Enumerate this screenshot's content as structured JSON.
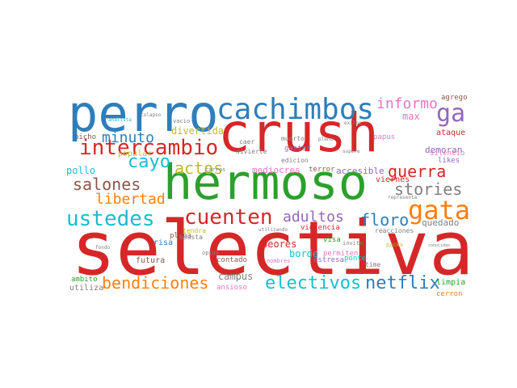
{
  "palette": {
    "blue": "#2e7ebc",
    "red": "#d62728",
    "green": "#2ca02c",
    "orange": "#ff7f0e",
    "purple": "#9467bd",
    "brown": "#8c564b",
    "pink": "#e377c2",
    "gray": "#7f7f7f",
    "olive": "#bcbd22",
    "cyan": "#17becf"
  },
  "words": [
    {
      "text": "selectiva",
      "color": "red"
    },
    {
      "text": "crush",
      "color": "red"
    },
    {
      "text": "hermoso",
      "color": "green"
    },
    {
      "text": "perro",
      "color": "blue"
    },
    {
      "text": "cachimbos",
      "color": "blue"
    },
    {
      "text": "intercambio",
      "color": "red"
    },
    {
      "text": "gata",
      "color": "orange"
    },
    {
      "text": "cuenten",
      "color": "red"
    },
    {
      "text": "ustedes",
      "color": "cyan"
    },
    {
      "text": "bendiciones",
      "color": "orange"
    },
    {
      "text": "electivos",
      "color": "cyan"
    },
    {
      "text": "netflix",
      "color": "blue"
    },
    {
      "text": "guerra",
      "color": "red"
    },
    {
      "text": "ga",
      "color": "purple"
    },
    {
      "text": "salones",
      "color": "brown"
    },
    {
      "text": "stories",
      "color": "gray"
    },
    {
      "text": "informo",
      "color": "pink"
    },
    {
      "text": "actos",
      "color": "olive"
    },
    {
      "text": "cayo",
      "color": "cyan"
    },
    {
      "text": "minuto",
      "color": "blue"
    },
    {
      "text": "floro",
      "color": "blue"
    },
    {
      "text": "adultos",
      "color": "purple"
    },
    {
      "text": "libertad",
      "color": "orange"
    },
    {
      "text": "campus",
      "color": "gray"
    },
    {
      "text": "quedado",
      "color": "gray"
    },
    {
      "text": "divertida",
      "color": "olive"
    },
    {
      "text": "pollo",
      "color": "cyan"
    },
    {
      "text": "accesible",
      "color": "purple"
    },
    {
      "text": "mediocres",
      "color": "pink"
    },
    {
      "text": "demoran",
      "color": "purple"
    },
    {
      "text": "max",
      "color": "pink"
    },
    {
      "text": "borde",
      "color": "cyan"
    },
    {
      "text": "peores",
      "color": "red"
    },
    {
      "text": "terror",
      "color": "brown"
    },
    {
      "text": "ataque",
      "color": "red"
    },
    {
      "text": "visa",
      "color": "green"
    },
    {
      "text": "viernes",
      "color": "red"
    },
    {
      "text": "futura",
      "color": "brown"
    },
    {
      "text": "risa",
      "color": "blue"
    },
    {
      "text": "popular",
      "color": "olive"
    },
    {
      "text": "contado",
      "color": "brown"
    },
    {
      "text": "plena",
      "color": "brown"
    },
    {
      "text": "violencia",
      "color": "red"
    },
    {
      "text": "estresa",
      "color": "purple"
    },
    {
      "text": "limpia",
      "color": "green"
    },
    {
      "text": "utiliza",
      "color": "gray"
    },
    {
      "text": "ansioso",
      "color": "pink"
    },
    {
      "text": "ambito",
      "color": "green"
    },
    {
      "text": "cerron",
      "color": "orange"
    },
    {
      "text": "agrego",
      "color": "brown"
    },
    {
      "text": "silencio",
      "color": "pink"
    },
    {
      "text": "likes",
      "color": "purple"
    },
    {
      "text": "gastar",
      "color": "purple"
    },
    {
      "text": "caer",
      "color": "gray"
    },
    {
      "text": "muerto",
      "color": "gray"
    },
    {
      "text": "edicion",
      "color": "gray"
    },
    {
      "text": "divierte",
      "color": "gray"
    },
    {
      "text": "papus",
      "color": "pink"
    },
    {
      "text": "ponte",
      "color": "cyan"
    },
    {
      "text": "permiten",
      "color": "pink"
    },
    {
      "text": "time",
      "color": "gray"
    },
    {
      "text": "bicho",
      "color": "brown"
    },
    {
      "text": "carros",
      "color": "gray"
    },
    {
      "text": "tendra",
      "color": "olive"
    },
    {
      "text": "asusta",
      "color": "gray"
    },
    {
      "text": "reacciones",
      "color": "gray"
    },
    {
      "text": "invite",
      "color": "gray"
    },
    {
      "text": "packs",
      "color": "olive"
    },
    {
      "text": "nombres",
      "color": "pink"
    },
    {
      "text": "opina",
      "color": "gray"
    },
    {
      "text": "vacio",
      "color": "gray"
    },
    {
      "text": "colapso",
      "color": "gray"
    },
    {
      "text": "analista",
      "color": "cyan"
    },
    {
      "text": "pleno",
      "color": "gray"
    },
    {
      "text": "fondo",
      "color": "gray"
    },
    {
      "text": "conocidas",
      "color": "gray"
    },
    {
      "text": "representa",
      "color": "gray"
    },
    {
      "text": "supere",
      "color": "gray"
    },
    {
      "text": "exitos",
      "color": "gray"
    },
    {
      "text": "utilizando",
      "color": "gray"
    }
  ]
}
